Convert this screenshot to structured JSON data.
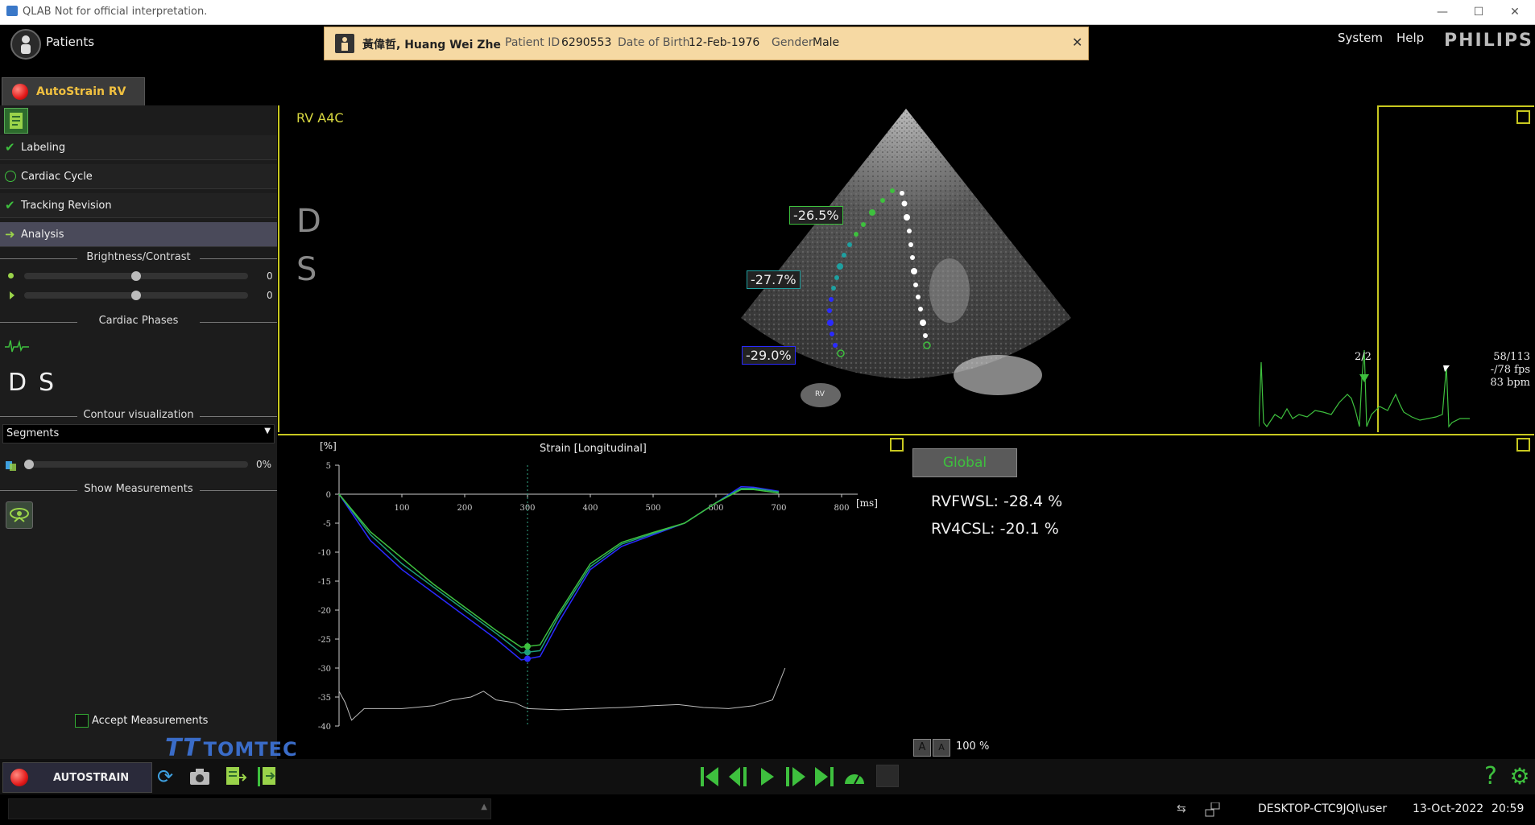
{
  "window": {
    "title": "QLAB Not for official interpretation."
  },
  "header": {
    "patients_label": "Patients",
    "menu": [
      "System",
      "Help"
    ],
    "brand": "PHILIPS"
  },
  "patient": {
    "name": "黃偉哲, Huang Wei Zhe",
    "id_label": "Patient ID",
    "id": "6290553",
    "dob_label": "Date of Birth",
    "dob": "12-Feb-1976",
    "gender_label": "Gender",
    "gender": "Male"
  },
  "app_tab": {
    "label": "AutoStrain RV"
  },
  "workflow": [
    {
      "label": "Labeling",
      "state": "done"
    },
    {
      "label": "Cardiac Cycle",
      "state": "pending"
    },
    {
      "label": "Tracking Revision",
      "state": "done"
    },
    {
      "label": "Analysis",
      "state": "active"
    }
  ],
  "brightness": {
    "header": "Brightness/Contrast",
    "brightness_value": "0",
    "contrast_value": "0"
  },
  "phases": {
    "header": "Cardiac Phases",
    "d": "D",
    "s": "S"
  },
  "contour": {
    "header": "Contour visualization",
    "selected": "Segments",
    "opacity": "0%"
  },
  "measurements": {
    "header": "Show Measurements",
    "accept_label": "Accept Measurements"
  },
  "logo": {
    "text": "TOMTEC"
  },
  "echo": {
    "view_label": "RV A4C",
    "d": "D",
    "s": "S",
    "segment_labels": [
      "-26.5%",
      "-27.7%",
      "-29.0%"
    ],
    "rv_marker": "RV",
    "frame_info": "2/2",
    "frame_counter": "58/113",
    "fps": "-/78 fps",
    "hr": "83 bpm"
  },
  "chart_data": {
    "type": "line",
    "title": "Strain [Longitudinal]",
    "ylabel": "[%]",
    "xlabel": "[ms]",
    "ylim": [
      -40,
      5
    ],
    "xlim": [
      0,
      800
    ],
    "yticks": [
      5,
      0,
      -5,
      -10,
      -15,
      -20,
      -25,
      -30,
      -35,
      -40
    ],
    "xticks": [
      100,
      200,
      300,
      400,
      500,
      600,
      700,
      800
    ],
    "cursor_x": 300,
    "series": [
      {
        "color": "#2a2aff",
        "x": [
          0,
          50,
          100,
          150,
          200,
          250,
          290,
          320,
          350,
          400,
          450,
          500,
          550,
          600,
          640,
          660,
          700
        ],
        "y": [
          0,
          -8,
          -13,
          -17,
          -21,
          -25,
          -28.6,
          -28,
          -22,
          -13,
          -9,
          -7,
          -5,
          -1.5,
          1.3,
          1.2,
          0.5
        ]
      },
      {
        "color": "#1e9e7a",
        "x": [
          0,
          50,
          100,
          150,
          200,
          250,
          290,
          320,
          350,
          400,
          450,
          500,
          550,
          600,
          640,
          660,
          700
        ],
        "y": [
          0,
          -7,
          -12,
          -16,
          -20,
          -24,
          -27.4,
          -27,
          -21,
          -12.5,
          -8.6,
          -6.8,
          -5,
          -1.5,
          1,
          1,
          0.4
        ]
      },
      {
        "color": "#3ec03e",
        "x": [
          0,
          50,
          100,
          150,
          200,
          250,
          290,
          320,
          350,
          400,
          450,
          500,
          550,
          600,
          640,
          660,
          700
        ],
        "y": [
          0,
          -6.5,
          -11,
          -15.5,
          -19.5,
          -23.5,
          -26.4,
          -26,
          -20.5,
          -12,
          -8.3,
          -6.6,
          -5,
          -1.5,
          0.8,
          0.8,
          0.2
        ]
      }
    ]
  },
  "global": {
    "label": "Global",
    "measure1": "RVFWSL: -28.4 %",
    "measure2": "RV4CSL: -20.1 %"
  },
  "zoom": {
    "a1": "A",
    "a2": "A",
    "value": "100 %"
  },
  "toolbar": {
    "autostrain_label": "AUTOSTRAIN"
  },
  "status": {
    "user": "DESKTOP-CTC9JQI\\user",
    "date": "13-Oct-2022",
    "time": "20:59"
  }
}
